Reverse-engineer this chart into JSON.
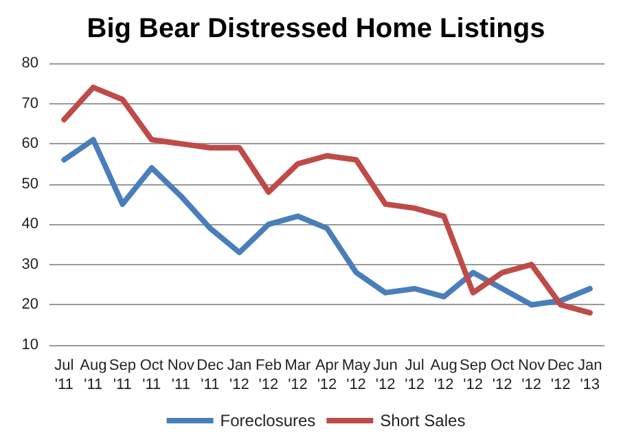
{
  "chart_data": {
    "type": "line",
    "title": "Big Bear Distressed Home Listings",
    "categories": [
      "Jul\n'11",
      "Aug\n'11",
      "Sep\n'11",
      "Oct\n'11",
      "Nov\n'11",
      "Dec\n'11",
      "Jan\n'12",
      "Feb\n'12",
      "Mar\n'12",
      "Apr\n'12",
      "May\n'12",
      "Jun\n'12",
      "Jul\n'12",
      "Aug\n'12",
      "Sep\n'12",
      "Oct\n'12",
      "Nov\n'12",
      "Dec\n'12",
      "Jan\n'13"
    ],
    "series": [
      {
        "name": "Foreclosures",
        "color": "#4a7ebb",
        "values": [
          56,
          61,
          45,
          54,
          47,
          39,
          33,
          40,
          42,
          39,
          28,
          23,
          24,
          22,
          28,
          24,
          20,
          21,
          24
        ]
      },
      {
        "name": "Short Sales",
        "color": "#be4b48",
        "values": [
          66,
          74,
          71,
          61,
          60,
          59,
          59,
          48,
          55,
          57,
          56,
          45,
          44,
          42,
          23,
          28,
          30,
          20,
          18
        ]
      }
    ],
    "ylim": [
      10,
      80
    ],
    "yticks": [
      10,
      20,
      30,
      40,
      50,
      60,
      70,
      80
    ],
    "grid": "y",
    "legend": "bottom",
    "marker": "none",
    "line_style": "solid"
  }
}
